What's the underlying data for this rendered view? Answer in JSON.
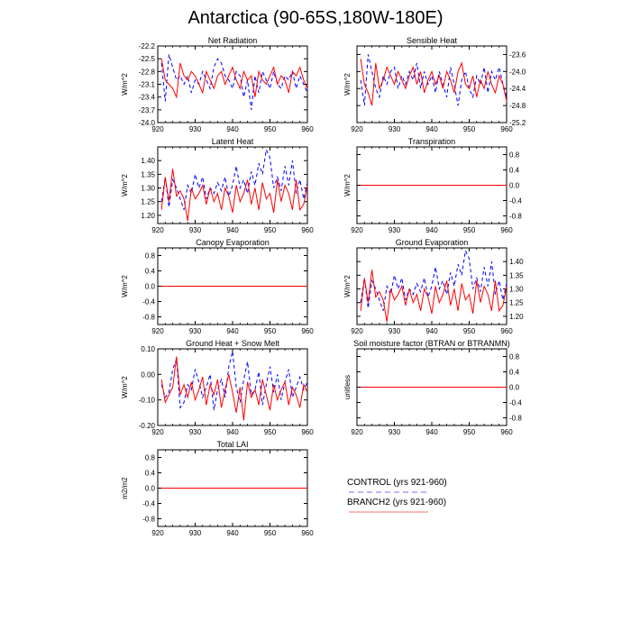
{
  "figure_title": "Antarctica (90-65S,180W-180E)",
  "legend": {
    "entries": [
      {
        "label": "CONTROL (yrs 921-960)",
        "color": "#0000ff",
        "style": "dashed"
      },
      {
        "label": "BRANCH2 (yrs 921-960)",
        "color": "#ff0000",
        "style": "solid"
      }
    ]
  },
  "chart_data": [
    {
      "type": "line",
      "title": "Net Radiation",
      "ylabel": "W/m^2",
      "xlim": [
        920,
        960
      ],
      "xticks": [
        920,
        930,
        940,
        950,
        960
      ],
      "ylim": [
        -24.0,
        -22.2
      ],
      "yticks": [
        -24.0,
        -23.7,
        -23.4,
        -23.1,
        -22.8,
        -22.5,
        -22.2
      ],
      "ytick_labels": [
        "-24.0",
        "-23.7",
        "-23.4",
        "-23.1",
        "-22.8",
        "-22.5",
        "-22.2"
      ],
      "ytick_side": "left",
      "x": [
        921,
        922,
        923,
        924,
        925,
        926,
        927,
        928,
        929,
        930,
        931,
        932,
        933,
        934,
        935,
        936,
        937,
        938,
        939,
        940,
        941,
        942,
        943,
        944,
        945,
        946,
        947,
        948,
        949,
        950,
        951,
        952,
        953,
        954,
        955,
        956,
        957,
        958,
        959,
        960
      ],
      "series": [
        {
          "name": "CONTROL (yrs 921-960)",
          "color": "#0000ff",
          "dash": true,
          "values": [
            -22.6,
            -23.5,
            -22.4,
            -22.7,
            -23.0,
            -22.9,
            -23.1,
            -22.9,
            -23.3,
            -23.0,
            -23.1,
            -22.8,
            -23.0,
            -23.2,
            -22.7,
            -22.5,
            -22.6,
            -22.9,
            -23.0,
            -23.2,
            -22.8,
            -22.9,
            -23.4,
            -23.0,
            -23.7,
            -22.9,
            -23.3,
            -22.8,
            -23.0,
            -23.2,
            -22.8,
            -23.1,
            -23.2,
            -22.9,
            -23.0,
            -22.8,
            -23.2,
            -22.9,
            -23.1,
            -23.3
          ]
        },
        {
          "name": "BRANCH2 (yrs 921-960)",
          "color": "#ff0000",
          "dash": false,
          "values": [
            -22.5,
            -23.0,
            -23.1,
            -23.2,
            -23.4,
            -22.6,
            -22.9,
            -23.0,
            -22.8,
            -22.9,
            -23.1,
            -23.3,
            -22.8,
            -23.0,
            -23.2,
            -22.9,
            -22.8,
            -23.1,
            -22.9,
            -22.7,
            -23.0,
            -23.2,
            -22.8,
            -23.0,
            -22.9,
            -23.4,
            -22.8,
            -23.0,
            -23.1,
            -22.9,
            -22.7,
            -23.1,
            -22.9,
            -23.0,
            -23.3,
            -22.8,
            -22.9,
            -22.7,
            -23.0,
            -23.2
          ]
        }
      ]
    },
    {
      "type": "line",
      "title": "Sensible Heat",
      "ylabel": "W/m^2",
      "xlim": [
        920,
        960
      ],
      "xticks": [
        920,
        930,
        940,
        950,
        960
      ],
      "ylim": [
        -25.2,
        -23.4
      ],
      "yticks": [
        -25.2,
        -24.8,
        -24.4,
        -24.0,
        -23.6
      ],
      "ytick_labels": [
        "-25.2",
        "-24.8",
        "-24.4",
        "-24.0",
        "-23.6"
      ],
      "ytick_side": "right",
      "x": [
        921,
        922,
        923,
        924,
        925,
        926,
        927,
        928,
        929,
        930,
        931,
        932,
        933,
        934,
        935,
        936,
        937,
        938,
        939,
        940,
        941,
        942,
        943,
        944,
        945,
        946,
        947,
        948,
        949,
        950,
        951,
        952,
        953,
        954,
        955,
        956,
        957,
        958,
        959,
        960
      ],
      "series": [
        {
          "name": "CONTROL (yrs 921-960)",
          "color": "#0000ff",
          "dash": true,
          "values": [
            -24.2,
            -24.8,
            -23.6,
            -24.0,
            -24.4,
            -24.6,
            -24.1,
            -24.3,
            -24.0,
            -23.9,
            -24.4,
            -24.1,
            -24.3,
            -24.0,
            -24.2,
            -23.8,
            -24.4,
            -24.0,
            -24.3,
            -24.1,
            -24.5,
            -24.0,
            -24.3,
            -24.6,
            -23.9,
            -24.3,
            -24.8,
            -24.2,
            -24.0,
            -24.4,
            -24.6,
            -24.1,
            -24.3,
            -23.9,
            -24.5,
            -24.0,
            -24.2,
            -23.9,
            -24.3,
            -24.6
          ]
        },
        {
          "name": "BRANCH2 (yrs 921-960)",
          "color": "#ff0000",
          "dash": false,
          "values": [
            -23.7,
            -24.3,
            -24.5,
            -24.8,
            -23.8,
            -24.4,
            -24.2,
            -23.9,
            -24.1,
            -24.3,
            -24.0,
            -24.2,
            -24.4,
            -24.1,
            -23.9,
            -24.3,
            -24.0,
            -24.5,
            -24.2,
            -24.0,
            -24.3,
            -24.1,
            -24.4,
            -24.0,
            -24.2,
            -24.5,
            -24.0,
            -23.8,
            -24.3,
            -24.4,
            -24.1,
            -24.6,
            -24.2,
            -24.4,
            -24.0,
            -24.3,
            -24.5,
            -24.1,
            -24.3,
            -24.7
          ]
        }
      ]
    },
    {
      "type": "line",
      "title": "Latent Heat",
      "ylabel": "W/m^2",
      "xlim": [
        920,
        960
      ],
      "xticks": [
        920,
        930,
        940,
        950,
        960
      ],
      "ylim": [
        1.17,
        1.45
      ],
      "yticks": [
        1.2,
        1.25,
        1.3,
        1.35,
        1.4
      ],
      "ytick_labels": [
        "1.20",
        "1.25",
        "1.30",
        "1.35",
        "1.40"
      ],
      "ytick_side": "left",
      "x": [
        921,
        922,
        923,
        924,
        925,
        926,
        927,
        928,
        929,
        930,
        931,
        932,
        933,
        934,
        935,
        936,
        937,
        938,
        939,
        940,
        941,
        942,
        943,
        944,
        945,
        946,
        947,
        948,
        949,
        950,
        951,
        952,
        953,
        954,
        955,
        956,
        957,
        958,
        959,
        960
      ],
      "series": [
        {
          "name": "CONTROL (yrs 921-960)",
          "color": "#0000ff",
          "dash": true,
          "values": [
            1.25,
            1.34,
            1.23,
            1.33,
            1.3,
            1.26,
            1.22,
            1.31,
            1.28,
            1.35,
            1.3,
            1.34,
            1.26,
            1.3,
            1.28,
            1.32,
            1.29,
            1.34,
            1.27,
            1.31,
            1.38,
            1.3,
            1.33,
            1.28,
            1.36,
            1.31,
            1.39,
            1.35,
            1.44,
            1.41,
            1.3,
            1.34,
            1.29,
            1.38,
            1.31,
            1.4,
            1.28,
            1.33,
            1.26,
            1.32
          ]
        },
        {
          "name": "BRANCH2 (yrs 921-960)",
          "color": "#ff0000",
          "dash": false,
          "values": [
            1.22,
            1.34,
            1.25,
            1.37,
            1.27,
            1.29,
            1.26,
            1.18,
            1.3,
            1.26,
            1.28,
            1.31,
            1.24,
            1.3,
            1.25,
            1.28,
            1.22,
            1.3,
            1.27,
            1.21,
            1.31,
            1.25,
            1.28,
            1.33,
            1.24,
            1.3,
            1.22,
            1.32,
            1.26,
            1.28,
            1.21,
            1.33,
            1.25,
            1.31,
            1.28,
            1.22,
            1.33,
            1.22,
            1.24,
            1.31
          ]
        }
      ]
    },
    {
      "type": "line",
      "title": "Transpiration",
      "ylabel": "W/m^2",
      "xlim": [
        920,
        960
      ],
      "xticks": [
        920,
        930,
        940,
        950,
        960
      ],
      "ylim": [
        -1.0,
        1.0
      ],
      "yticks": [
        -0.8,
        -0.4,
        0.0,
        0.4,
        0.8
      ],
      "ytick_labels": [
        "-0.8",
        "-0.4",
        "0.0",
        "0.4",
        "0.8"
      ],
      "ytick_side": "right",
      "x": [
        921,
        960
      ],
      "series": [
        {
          "name": "CONTROL (yrs 921-960)",
          "color": "#0000ff",
          "dash": true,
          "values": [
            0.0,
            0.0
          ]
        },
        {
          "name": "BRANCH2 (yrs 921-960)",
          "color": "#ff0000",
          "dash": false,
          "values": [
            0.0,
            0.0
          ]
        }
      ]
    },
    {
      "type": "line",
      "title": "Canopy Evaporation",
      "ylabel": "W/m^2",
      "xlim": [
        920,
        960
      ],
      "xticks": [
        920,
        930,
        940,
        950,
        960
      ],
      "ylim": [
        -1.0,
        1.0
      ],
      "yticks": [
        -0.8,
        -0.4,
        0.0,
        0.4,
        0.8
      ],
      "ytick_labels": [
        "-0.8",
        "-0.4",
        "0.0",
        "0.4",
        "0.8"
      ],
      "ytick_side": "left",
      "x": [
        921,
        960
      ],
      "series": [
        {
          "name": "CONTROL (yrs 921-960)",
          "color": "#0000ff",
          "dash": true,
          "values": [
            0.0,
            0.0
          ]
        },
        {
          "name": "BRANCH2 (yrs 921-960)",
          "color": "#ff0000",
          "dash": false,
          "values": [
            0.0,
            0.0
          ]
        }
      ]
    },
    {
      "type": "line",
      "title": "Ground Evaporation",
      "ylabel": "W/m^2",
      "xlim": [
        920,
        960
      ],
      "xticks": [
        920,
        930,
        940,
        950,
        960
      ],
      "ylim": [
        1.17,
        1.45
      ],
      "yticks": [
        1.2,
        1.25,
        1.3,
        1.35,
        1.4
      ],
      "ytick_labels": [
        "1.20",
        "1.25",
        "1.30",
        "1.35",
        "1.40"
      ],
      "ytick_side": "right",
      "x": [
        921,
        922,
        923,
        924,
        925,
        926,
        927,
        928,
        929,
        930,
        931,
        932,
        933,
        934,
        935,
        936,
        937,
        938,
        939,
        940,
        941,
        942,
        943,
        944,
        945,
        946,
        947,
        948,
        949,
        950,
        951,
        952,
        953,
        954,
        955,
        956,
        957,
        958,
        959,
        960
      ],
      "series": [
        {
          "name": "CONTROL (yrs 921-960)",
          "color": "#0000ff",
          "dash": true,
          "values": [
            1.25,
            1.34,
            1.23,
            1.33,
            1.3,
            1.26,
            1.22,
            1.31,
            1.28,
            1.35,
            1.3,
            1.34,
            1.26,
            1.3,
            1.28,
            1.32,
            1.29,
            1.34,
            1.27,
            1.31,
            1.38,
            1.3,
            1.33,
            1.28,
            1.36,
            1.31,
            1.39,
            1.35,
            1.44,
            1.41,
            1.3,
            1.34,
            1.29,
            1.38,
            1.31,
            1.4,
            1.28,
            1.33,
            1.26,
            1.32
          ]
        },
        {
          "name": "BRANCH2 (yrs 921-960)",
          "color": "#ff0000",
          "dash": false,
          "values": [
            1.22,
            1.34,
            1.25,
            1.37,
            1.27,
            1.29,
            1.26,
            1.18,
            1.3,
            1.26,
            1.28,
            1.31,
            1.24,
            1.3,
            1.25,
            1.28,
            1.22,
            1.3,
            1.27,
            1.21,
            1.31,
            1.25,
            1.28,
            1.33,
            1.24,
            1.3,
            1.22,
            1.32,
            1.26,
            1.28,
            1.21,
            1.33,
            1.25,
            1.31,
            1.28,
            1.22,
            1.33,
            1.22,
            1.24,
            1.31
          ]
        }
      ]
    },
    {
      "type": "line",
      "title": "Ground Heat + Snow Melt",
      "ylabel": "W/m^2",
      "xlim": [
        920,
        960
      ],
      "xticks": [
        920,
        930,
        940,
        950,
        960
      ],
      "ylim": [
        -0.2,
        0.1
      ],
      "yticks": [
        -0.2,
        -0.1,
        0.0,
        0.1
      ],
      "ytick_labels": [
        "-0.20",
        "-0.10",
        "0.00",
        "0.10"
      ],
      "ytick_side": "left",
      "x": [
        921,
        922,
        923,
        924,
        925,
        926,
        927,
        928,
        929,
        930,
        931,
        932,
        933,
        934,
        935,
        936,
        937,
        938,
        939,
        940,
        941,
        942,
        943,
        944,
        945,
        946,
        947,
        948,
        949,
        950,
        951,
        952,
        953,
        954,
        955,
        956,
        957,
        958,
        959,
        960
      ],
      "series": [
        {
          "name": "CONTROL (yrs 921-960)",
          "color": "#0000ff",
          "dash": true,
          "values": [
            -0.04,
            -0.09,
            -0.07,
            0.02,
            0.06,
            -0.13,
            -0.11,
            -0.04,
            -0.06,
            0.02,
            -0.03,
            -0.09,
            -0.05,
            0.0,
            -0.14,
            -0.06,
            -0.02,
            -0.09,
            0.03,
            0.09,
            -0.05,
            -0.11,
            -0.02,
            0.05,
            -0.08,
            -0.06,
            0.01,
            -0.12,
            -0.04,
            0.03,
            -0.07,
            0.0,
            -0.1,
            -0.03,
            0.02,
            -0.09,
            -0.05,
            -0.01,
            -0.06,
            -0.03
          ]
        },
        {
          "name": "BRANCH2 (yrs 921-960)",
          "color": "#ff0000",
          "dash": false,
          "values": [
            -0.02,
            -0.11,
            -0.08,
            -0.05,
            0.07,
            -0.08,
            -0.04,
            -0.09,
            -0.03,
            -0.1,
            -0.06,
            -0.01,
            -0.12,
            -0.04,
            -0.08,
            -0.02,
            -0.13,
            -0.06,
            0.0,
            -0.07,
            -0.15,
            -0.05,
            -0.18,
            -0.03,
            -0.09,
            -0.06,
            -0.12,
            -0.02,
            -0.08,
            -0.14,
            -0.04,
            -0.1,
            -0.06,
            -0.03,
            -0.12,
            -0.05,
            -0.08,
            -0.13,
            -0.04,
            -0.07
          ]
        }
      ]
    },
    {
      "type": "line",
      "title": "Soil moisture factor (BTRAN or BTRANMN)",
      "ylabel": "unitless",
      "xlim": [
        920,
        960
      ],
      "xticks": [
        920,
        930,
        940,
        950,
        960
      ],
      "ylim": [
        -1.0,
        1.0
      ],
      "yticks": [
        -0.8,
        -0.4,
        0.0,
        0.4,
        0.8
      ],
      "ytick_labels": [
        "-0.8",
        "-0.4",
        "0.0",
        "0.4",
        "0.8"
      ],
      "ytick_side": "right",
      "x": [
        921,
        960
      ],
      "series": [
        {
          "name": "CONTROL (yrs 921-960)",
          "color": "#0000ff",
          "dash": true,
          "values": [
            0.0,
            0.0
          ]
        },
        {
          "name": "BRANCH2 (yrs 921-960)",
          "color": "#ff0000",
          "dash": false,
          "values": [
            0.0,
            0.0
          ]
        }
      ]
    },
    {
      "type": "line",
      "title": "Total LAI",
      "ylabel": "m2/m2",
      "xlim": [
        920,
        960
      ],
      "xticks": [
        920,
        930,
        940,
        950,
        960
      ],
      "ylim": [
        -1.0,
        1.0
      ],
      "yticks": [
        -0.8,
        -0.4,
        0.0,
        0.4,
        0.8
      ],
      "ytick_labels": [
        "-0.8",
        "-0.4",
        "0.0",
        "0.4",
        "0.8"
      ],
      "ytick_side": "left",
      "x": [
        921,
        960
      ],
      "series": [
        {
          "name": "CONTROL (yrs 921-960)",
          "color": "#0000ff",
          "dash": true,
          "values": [
            0.0,
            0.0
          ]
        },
        {
          "name": "BRANCH2 (yrs 921-960)",
          "color": "#ff0000",
          "dash": false,
          "values": [
            0.0,
            0.0
          ]
        }
      ]
    }
  ]
}
